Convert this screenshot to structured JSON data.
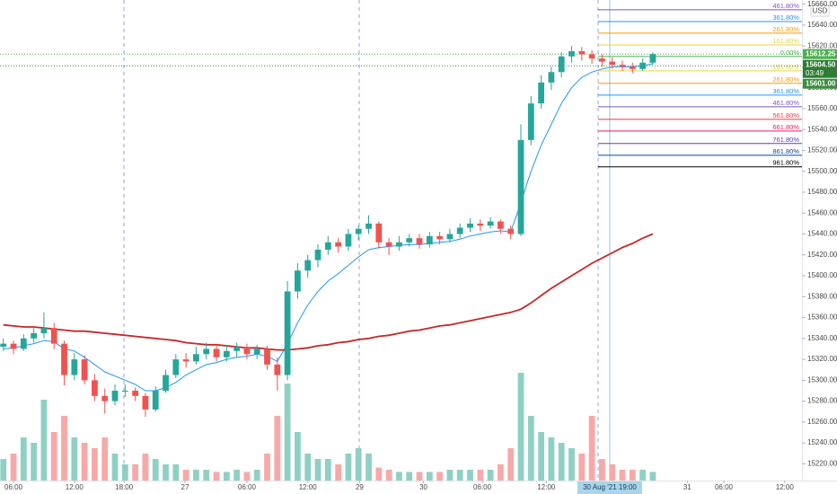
{
  "chart_data": {
    "type": "candlestick",
    "currency": "USD",
    "xlim": [
      -0.33,
      78.7
    ],
    "ylim": [
      15204,
      15664
    ],
    "yticks": [
      {
        "value": 15220,
        "label": "15220.00"
      },
      {
        "value": 15240,
        "label": "15240.00"
      },
      {
        "value": 15260,
        "label": "15260.00"
      },
      {
        "value": 15280,
        "label": "15280.00"
      },
      {
        "value": 15300,
        "label": "15300.00"
      },
      {
        "value": 15320,
        "label": "15320.00"
      },
      {
        "value": 15340,
        "label": "15340.00"
      },
      {
        "value": 15360,
        "label": "15360.00"
      },
      {
        "value": 15380,
        "label": "15380.00"
      },
      {
        "value": 15400,
        "label": "15400.00"
      },
      {
        "value": 15420,
        "label": "15420.00"
      },
      {
        "value": 15440,
        "label": "15440.00"
      },
      {
        "value": 15460,
        "label": "15460.00"
      },
      {
        "value": 15480,
        "label": "15480.00"
      },
      {
        "value": 15500,
        "label": "15500.00"
      },
      {
        "value": 15520,
        "label": "15520.00"
      },
      {
        "value": 15540,
        "label": "15540.00"
      },
      {
        "value": 15560,
        "label": "15560.00"
      },
      {
        "value": 15580,
        "label": "15580.00"
      },
      {
        "value": 15600,
        "label": "15600.00"
      },
      {
        "value": 15620,
        "label": "15620.00"
      },
      {
        "value": 15640,
        "label": "15640.00"
      },
      {
        "value": 15660,
        "label": "15660.00"
      }
    ],
    "xticks": [
      {
        "value": 1.0,
        "label": "06:00"
      },
      {
        "value": 7.0,
        "label": "12:00"
      },
      {
        "value": 11.9,
        "label": "18:00"
      },
      {
        "value": 17.9,
        "label": "27"
      },
      {
        "value": 24.0,
        "label": "06:00"
      },
      {
        "value": 30.0,
        "label": "12:00"
      },
      {
        "value": 35.1,
        "label": "29"
      },
      {
        "value": 41.4,
        "label": "30"
      },
      {
        "value": 47.2,
        "label": "06:00"
      },
      {
        "value": 53.5,
        "label": "12:00"
      },
      {
        "value": 67.4,
        "label": "31"
      },
      {
        "value": 71.0,
        "label": "06:00"
      },
      {
        "value": 77.0,
        "label": "12:00"
      }
    ],
    "session_breaks": [
      11.88,
      35.07,
      58.61
    ],
    "crosshair": {
      "x": 59.76,
      "label": "30 Aug '21   19:00"
    },
    "up_color": "#26a69a",
    "down_color": "#ef5350",
    "x": [
      0,
      1,
      2,
      3,
      4,
      5,
      6,
      7,
      8,
      9,
      10,
      11,
      12,
      13,
      14,
      15,
      16,
      17,
      18,
      19,
      20,
      21,
      22,
      23,
      24,
      25,
      26,
      27,
      28,
      29,
      30,
      31,
      32,
      33,
      34,
      35,
      36,
      37,
      38,
      39,
      40,
      41,
      42,
      43,
      44,
      45,
      46,
      47,
      48,
      49,
      50,
      51,
      52,
      53,
      54,
      55,
      56,
      57,
      58,
      59,
      60,
      61,
      62,
      63,
      64
    ],
    "candles": [
      [
        15332,
        15340,
        15328,
        15335
      ],
      [
        15335,
        15338,
        15325,
        15330
      ],
      [
        15330,
        15344,
        15328,
        15340
      ],
      [
        15340,
        15350,
        15336,
        15345
      ],
      [
        15345,
        15365,
        15340,
        15350
      ],
      [
        15350,
        15355,
        15330,
        15335
      ],
      [
        15335,
        15338,
        15295,
        15305
      ],
      [
        15305,
        15326,
        15300,
        15320
      ],
      [
        15320,
        15324,
        15296,
        15300
      ],
      [
        15300,
        15306,
        15280,
        15285
      ],
      [
        15285,
        15292,
        15268,
        15280
      ],
      [
        15280,
        15296,
        15276,
        15290
      ],
      [
        15290,
        15296,
        15284,
        15290
      ],
      [
        15290,
        15293,
        15280,
        15285
      ],
      [
        15285,
        15288,
        15265,
        15272
      ],
      [
        15272,
        15294,
        15270,
        15290
      ],
      [
        15290,
        15310,
        15288,
        15305
      ],
      [
        15305,
        15325,
        15302,
        15320
      ],
      [
        15320,
        15326,
        15312,
        15318
      ],
      [
        15318,
        15332,
        15315,
        15325
      ],
      [
        15325,
        15336,
        15320,
        15330
      ],
      [
        15330,
        15334,
        15318,
        15322
      ],
      [
        15322,
        15333,
        15318,
        15328
      ],
      [
        15328,
        15336,
        15322,
        15332
      ],
      [
        15332,
        15335,
        15320,
        15325
      ],
      [
        15325,
        15334,
        15320,
        15330
      ],
      [
        15330,
        15333,
        15310,
        15315
      ],
      [
        15315,
        15322,
        15290,
        15305
      ],
      [
        15305,
        15395,
        15300,
        15385
      ],
      [
        15385,
        15412,
        15378,
        15405
      ],
      [
        15405,
        15420,
        15398,
        15415
      ],
      [
        15415,
        15430,
        15408,
        15425
      ],
      [
        15425,
        15438,
        15420,
        15432
      ],
      [
        15432,
        15436,
        15422,
        15428
      ],
      [
        15428,
        15445,
        15424,
        15440
      ],
      [
        15440,
        15448,
        15434,
        15445
      ],
      [
        15445,
        15458,
        15440,
        15450
      ],
      [
        15450,
        15452,
        15426,
        15432
      ],
      [
        15432,
        15436,
        15420,
        15428
      ],
      [
        15428,
        15438,
        15424,
        15432
      ],
      [
        15432,
        15440,
        15428,
        15436
      ],
      [
        15436,
        15440,
        15426,
        15430
      ],
      [
        15430,
        15442,
        15427,
        15438
      ],
      [
        15438,
        15442,
        15430,
        15435
      ],
      [
        15435,
        15445,
        15432,
        15440
      ],
      [
        15440,
        15450,
        15436,
        15446
      ],
      [
        15446,
        15455,
        15442,
        15450
      ],
      [
        15450,
        15454,
        15443,
        15448
      ],
      [
        15448,
        15456,
        15445,
        15452
      ],
      [
        15452,
        15454,
        15440,
        15445
      ],
      [
        15445,
        15448,
        15435,
        15440
      ],
      [
        15440,
        15545,
        15438,
        15530
      ],
      [
        15530,
        15572,
        15525,
        15565
      ],
      [
        15565,
        15592,
        15560,
        15585
      ],
      [
        15585,
        15600,
        15578,
        15595
      ],
      [
        15595,
        15614,
        15590,
        15610
      ],
      [
        15610,
        15620,
        15604,
        15615
      ],
      [
        15615,
        15619,
        15606,
        15612
      ],
      [
        15612,
        15616,
        15603,
        15608
      ],
      [
        15608,
        15612,
        15600,
        15605
      ],
      [
        15605,
        15609,
        15598,
        15602
      ],
      [
        15602,
        15606,
        15596,
        15600
      ],
      [
        15600,
        15604,
        15594,
        15598
      ],
      [
        15598,
        15608,
        15596,
        15604
      ],
      [
        15604,
        15614,
        15602,
        15612.25
      ]
    ],
    "volume": [
      20,
      25,
      40,
      35,
      75,
      45,
      60,
      40,
      35,
      30,
      40,
      25,
      15,
      15,
      25,
      20,
      15,
      15,
      10,
      10,
      10,
      8,
      8,
      10,
      8,
      10,
      25,
      60,
      90,
      45,
      25,
      20,
      20,
      15,
      25,
      30,
      25,
      12,
      10,
      8,
      8,
      8,
      8,
      8,
      10,
      10,
      10,
      10,
      10,
      15,
      30,
      100,
      60,
      45,
      40,
      35,
      30,
      25,
      60,
      20,
      15,
      10,
      10,
      10,
      8
    ],
    "volume_up_color": "#8fd0c4",
    "volume_down_color": "#f7a9a7",
    "series": [
      {
        "color": "#2196f3",
        "values": [
          15330,
          15331,
          15333,
          15335,
          15338,
          15337,
          15330,
          15328,
          15322,
          15315,
          15308,
          15304,
          15300,
          15296,
          15290,
          15290,
          15293,
          15298,
          15305,
          15310,
          15315,
          15317,
          15320,
          15322,
          15323,
          15325,
          15323,
          15318,
          15335,
          15355,
          15372,
          15385,
          15395,
          15402,
          15410,
          15418,
          15425,
          15427,
          15428,
          15429,
          15430,
          15430,
          15431,
          15432,
          15433,
          15435,
          15438,
          15440,
          15442,
          15443,
          15442,
          15470,
          15500,
          15525,
          15545,
          15565,
          15580,
          15590,
          15595,
          15598,
          15600,
          15600,
          15600,
          15601,
          15603
        ]
      },
      {
        "color": "#c62828",
        "values": [
          15353,
          15352,
          15351,
          15351,
          15350,
          15349,
          15348,
          15347,
          15347,
          15346,
          15345,
          15344,
          15343,
          15342,
          15341,
          15340,
          15339,
          15338,
          15336,
          15335,
          15334,
          15334,
          15333,
          15332,
          15331,
          15331,
          15330,
          15329,
          15329,
          15330,
          15331,
          15333,
          15334,
          15336,
          15337,
          15339,
          15340,
          15342,
          15343,
          15345,
          15347,
          15348,
          15350,
          15352,
          15353,
          15355,
          15357,
          15359,
          15361,
          15363,
          15365,
          15368,
          15374,
          15381,
          15388,
          15394,
          15400,
          15406,
          15412,
          15417,
          15422,
          15427,
          15431,
          15436,
          15440
        ]
      }
    ],
    "fib_start_x": 58.61,
    "fib_levels": [
      {
        "value": 15654.6,
        "label": "461.80%",
        "color": "#7e57c2"
      },
      {
        "value": 15643.4,
        "label": "361.80%",
        "color": "#2196f3"
      },
      {
        "value": 15632.3,
        "label": "261.80%",
        "color": "#ff9800"
      },
      {
        "value": 15621.0,
        "label": "161.80%",
        "color": "#e8d44d"
      },
      {
        "value": 15609.9,
        "label": "0.00%",
        "color": "#4caf50"
      },
      {
        "value": 15596.2,
        "label": "161.80%",
        "color": "#e8d44d"
      },
      {
        "value": 15584.2,
        "label": "261.80%",
        "color": "#ff9800"
      },
      {
        "value": 15573.0,
        "label": "361.80%",
        "color": "#2196f3"
      },
      {
        "value": 15561.8,
        "label": "461.80%",
        "color": "#7e57c2"
      },
      {
        "value": 15549.8,
        "label": "561.80%",
        "color": "#f23645"
      },
      {
        "value": 15538.6,
        "label": "661.80%",
        "color": "#e91e63"
      },
      {
        "value": 15526.6,
        "label": "761.80%",
        "color": "#673ab7"
      },
      {
        "value": 15515.4,
        "label": "861.80%",
        "color": "#0d47a1"
      },
      {
        "value": 15504.3,
        "label": "961.80%",
        "color": "#000000"
      }
    ],
    "price_tags": [
      {
        "value": 15612.25,
        "label": "15612.25",
        "color": "#4caf50",
        "dotted": true
      },
      {
        "value": 15604.5,
        "label": "15604.50",
        "sublabel": "03:49",
        "color": "#2e7d32",
        "dotted": false
      },
      {
        "value": 15601.0,
        "label": "15601.00",
        "color": "#388e3c",
        "dotted": true
      }
    ]
  }
}
